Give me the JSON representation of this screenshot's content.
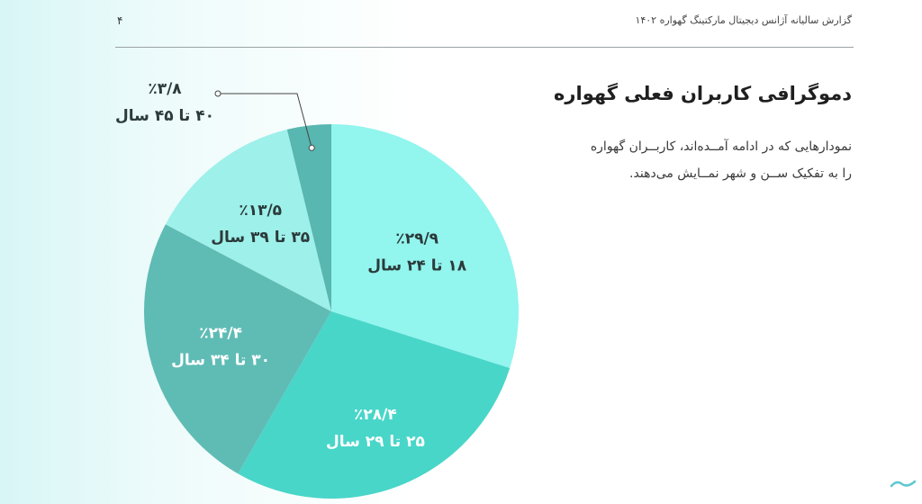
{
  "header": {
    "page_number": "۴",
    "report_title": "گزارش سالیانه آژانس دیجیتال مارکتینگ گهواره ۱۴۰۲"
  },
  "content": {
    "heading": "دموگرافی کاربران فعلی گهواره",
    "description": "نمودارهایی که در ادامه آمــده‌اند، کاربــران گهواره را به تفکیک ســن و شهر نمــایش می‌دهند."
  },
  "chart_data": {
    "type": "pie",
    "start_angle_deg": 0,
    "direction": "clockwise",
    "slices": [
      {
        "label": "۱۸ تا ۲۴ سال",
        "value_label": "٪۲۹/۹",
        "value": 29.9,
        "color": "#92f5ee"
      },
      {
        "label": "۲۵ تا ۲۹ سال",
        "value_label": "٪۲۸/۴",
        "value": 28.4,
        "color": "#48d6c9"
      },
      {
        "label": "۳۰ تا ۳۴ سال",
        "value_label": "٪۲۴/۴",
        "value": 24.4,
        "color": "#5fbcb5"
      },
      {
        "label": "۳۵ تا ۳۹ سال",
        "value_label": "٪۱۳/۵",
        "value": 13.5,
        "color": "#9ef0ea"
      },
      {
        "label": "۴۰ تا ۴۵ سال",
        "value_label": "٪۳/۸",
        "value": 3.8,
        "color": "#58b7b0"
      }
    ]
  }
}
